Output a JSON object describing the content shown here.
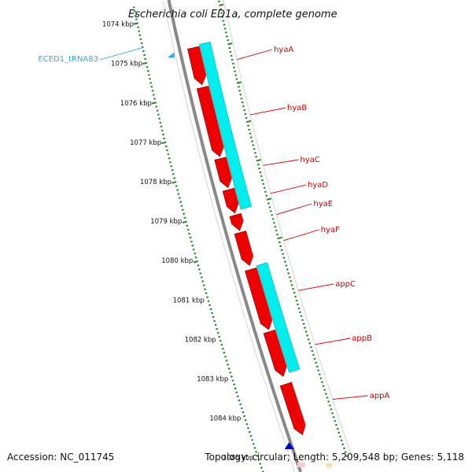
{
  "title": "Escherichia coli ED1a, complete genome",
  "kbp_ticks": [
    {
      "pos": 1074,
      "label": "1074 kbp"
    },
    {
      "pos": 1075,
      "label": "1075 kbp"
    },
    {
      "pos": 1076,
      "label": "1076 kbp"
    },
    {
      "pos": 1077,
      "label": "1077 kbp"
    },
    {
      "pos": 1078,
      "label": "1078 kbp"
    },
    {
      "pos": 1079,
      "label": "1079 kbp"
    },
    {
      "pos": 1080,
      "label": "1080 kbp"
    },
    {
      "pos": 1081,
      "label": "1081 kbp"
    },
    {
      "pos": 1082,
      "label": "1082 kbp"
    },
    {
      "pos": 1083,
      "label": "1083 kbp"
    },
    {
      "pos": 1084,
      "label": "1084 kbp"
    },
    {
      "pos": 1085,
      "label": "1085 kbp"
    }
  ],
  "genes": [
    {
      "name": "hyaA",
      "start": 1074.9,
      "end": 1075.85
    },
    {
      "name": "hyaB",
      "start": 1075.92,
      "end": 1077.7
    },
    {
      "name": "hyaC",
      "start": 1077.75,
      "end": 1078.5
    },
    {
      "name": "hyaD",
      "start": 1078.55,
      "end": 1079.15
    },
    {
      "name": "hyaE",
      "start": 1079.2,
      "end": 1079.6
    },
    {
      "name": "hyaF",
      "start": 1079.65,
      "end": 1080.5
    },
    {
      "name": "appC",
      "start": 1080.6,
      "end": 1082.15
    },
    {
      "name": "appB",
      "start": 1082.2,
      "end": 1083.35
    },
    {
      "name": "appA",
      "start": 1083.55,
      "end": 1084.85
    }
  ],
  "operons": [
    {
      "start": 1074.85,
      "end": 1079.1
    },
    {
      "start": 1080.55,
      "end": 1083.3
    }
  ],
  "trna": {
    "name": "ECED1_tRNA83",
    "pos": 1074.6
  },
  "footer": {
    "accession": "Accession: NC_011745",
    "topology": "Topology: circular; Length: 5,209,548 bp; Genes: 5,118"
  },
  "colors": {
    "gene": "#ee0000",
    "gene_edge": "#aa0000",
    "operon": "#00eeee",
    "backbone": "#888888",
    "tick": "#228822",
    "trna": "#33aadd",
    "blue_feature": "#0000cc"
  }
}
